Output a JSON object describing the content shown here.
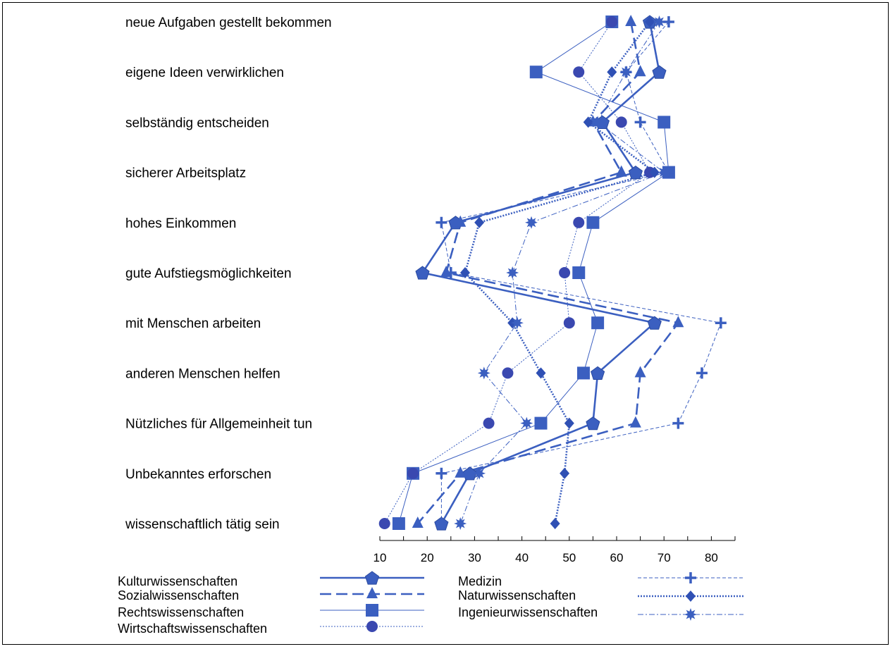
{
  "chart_data": {
    "type": "line",
    "orientation": "horizontal",
    "categories": [
      "neue Aufgaben gestellt bekommen",
      "eigene Ideen verwirklichen",
      "selbständig entscheiden",
      "sicherer Arbeitsplatz",
      "hohes Einkommen",
      "gute Aufstiegsmöglichkeiten",
      "mit Menschen arbeiten",
      "anderen Menschen helfen",
      "Nützliches für Allgemeinheit tun",
      "Unbekanntes erforschen",
      "wissenschaftlich tätig sein"
    ],
    "xticks": [
      10,
      20,
      30,
      40,
      50,
      60,
      70,
      80
    ],
    "xlim": [
      10,
      85
    ],
    "marker_color": "#3b5fc0",
    "series": [
      {
        "name": "Kulturwissenschaften",
        "marker": "pentagon",
        "line": "solid-thick",
        "values": [
          67,
          69,
          57,
          64,
          26,
          19,
          68,
          56,
          55,
          29,
          23
        ]
      },
      {
        "name": "Sozialwissenschaften",
        "marker": "triangle",
        "line": "dashed",
        "values": [
          63,
          65,
          55,
          61,
          27,
          24,
          73,
          65,
          64,
          27,
          18
        ]
      },
      {
        "name": "Rechtswissenschaften",
        "marker": "square",
        "line": "solid-thin",
        "values": [
          59,
          43,
          70,
          71,
          55,
          52,
          56,
          53,
          44,
          17,
          14
        ]
      },
      {
        "name": "Wirtschaftswissenschaften",
        "marker": "circle",
        "line": "dotted",
        "values": [
          59,
          52,
          61,
          67,
          52,
          49,
          50,
          37,
          33,
          17,
          11
        ]
      },
      {
        "name": "Medizin",
        "marker": "plus",
        "line": "dashed-thin",
        "values": [
          71,
          62,
          65,
          71,
          23,
          25,
          82,
          78,
          73,
          23,
          23
        ]
      },
      {
        "name": "Naturwissenschaften",
        "marker": "diamond",
        "line": "dotted-thick",
        "values": [
          67,
          59,
          54,
          68,
          31,
          28,
          38,
          44,
          50,
          49,
          47
        ]
      },
      {
        "name": "Ingenieurwissenschaften",
        "marker": "star",
        "line": "dashdot",
        "values": [
          69,
          62,
          56,
          70,
          42,
          38,
          39,
          32,
          41,
          31,
          27
        ]
      }
    ]
  }
}
